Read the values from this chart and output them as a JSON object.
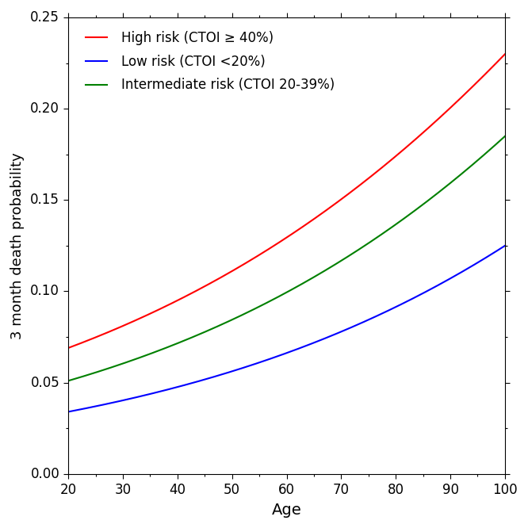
{
  "xlabel": "Age",
  "ylabel": "3 month death probability",
  "xlim": [
    20,
    100
  ],
  "ylim": [
    0.0,
    0.25
  ],
  "xticks": [
    20,
    30,
    40,
    50,
    60,
    70,
    80,
    90,
    100
  ],
  "yticks": [
    0.0,
    0.05,
    0.1,
    0.15,
    0.2,
    0.25
  ],
  "legend": [
    {
      "label": "High risk (CTOI ≥ 40%)",
      "color": "red"
    },
    {
      "label": "Low risk (CTOI <20%)",
      "color": "blue"
    },
    {
      "label": "Intermediate risk (CTOI 20-39%)",
      "color": "green"
    }
  ],
  "p_red_at_20": 0.069,
  "p_red_at_100": 0.23,
  "p_green_at_20": 0.051,
  "p_green_at_100": 0.185,
  "p_blue_at_20": 0.034,
  "p_blue_at_100": 0.125,
  "line_width": 1.5,
  "figsize": [
    6.66,
    6.66
  ],
  "dpi": 100
}
